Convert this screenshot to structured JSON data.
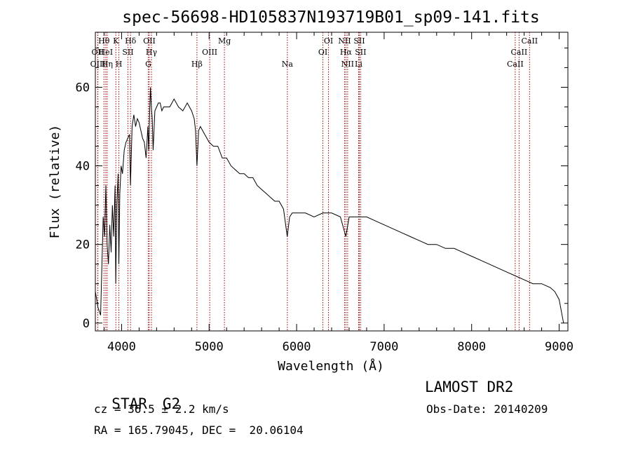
{
  "chart_data": {
    "type": "line",
    "title": "spec-56698-HD105837N193719B01_sp09-141.fits",
    "xlabel": "Wavelength (Å)",
    "ylabel": "Flux (relative)",
    "xlim": [
      3700,
      9100
    ],
    "ylim": [
      -2,
      74
    ],
    "xticks": [
      4000,
      5000,
      6000,
      7000,
      8000,
      9000
    ],
    "yticks": [
      0,
      20,
      40,
      60
    ],
    "grid": false,
    "series": [
      {
        "color": "#000000",
        "x": [
          3700,
          3715,
          3730,
          3745,
          3760,
          3775,
          3790,
          3805,
          3820,
          3835,
          3850,
          3865,
          3880,
          3895,
          3910,
          3925,
          3933,
          3945,
          3960,
          3968,
          3980,
          3995,
          4010,
          4030,
          4050,
          4070,
          4090,
          4101,
          4120,
          4140,
          4160,
          4180,
          4200,
          4220,
          4240,
          4260,
          4280,
          4300,
          4310,
          4320,
          4330,
          4340,
          4350,
          4360,
          4380,
          4400,
          4420,
          4440,
          4460,
          4480,
          4500,
          4550,
          4600,
          4650,
          4700,
          4750,
          4800,
          4830,
          4845,
          4861,
          4880,
          4900,
          4950,
          5000,
          5050,
          5100,
          5150,
          5200,
          5250,
          5300,
          5350,
          5400,
          5450,
          5500,
          5550,
          5600,
          5650,
          5700,
          5750,
          5800,
          5850,
          5893,
          5920,
          5950,
          6000,
          6100,
          6200,
          6300,
          6400,
          6500,
          6563,
          6600,
          6700,
          6800,
          6900,
          7000,
          7100,
          7200,
          7300,
          7400,
          7500,
          7600,
          7700,
          7800,
          7900,
          8000,
          8100,
          8200,
          8300,
          8400,
          8500,
          8600,
          8700,
          8800,
          8900,
          8950,
          9000,
          9050
        ],
        "y": [
          8,
          6,
          4,
          3,
          2,
          15,
          27,
          22,
          35,
          20,
          15,
          25,
          18,
          30,
          22,
          35,
          10,
          30,
          38,
          15,
          33,
          40,
          38,
          44,
          46,
          47,
          48,
          35,
          50,
          53,
          50,
          52,
          51,
          49,
          47,
          46,
          42,
          50,
          44,
          53,
          60,
          55,
          52,
          44,
          54,
          55,
          56,
          56,
          54,
          55,
          55,
          55,
          57,
          55,
          54,
          56,
          54,
          52,
          49,
          40,
          49,
          50,
          48,
          46,
          45,
          45,
          42,
          42,
          40,
          39,
          38,
          38,
          37,
          37,
          35,
          34,
          33,
          32,
          31,
          31,
          29,
          22,
          27,
          28,
          28,
          28,
          27,
          28,
          28,
          27,
          22,
          27,
          27,
          27,
          26,
          25,
          24,
          23,
          22,
          21,
          20,
          20,
          19,
          19,
          18,
          17,
          16,
          15,
          14,
          13,
          12,
          11,
          10,
          10,
          9,
          8,
          6,
          0
        ]
      }
    ],
    "lines": [
      {
        "label": "OII",
        "x": 3727,
        "row": 1
      },
      {
        "label": "OIII",
        "x": 3729,
        "row": 2
      },
      {
        "label": "Hθ",
        "x": 3798,
        "row": 0
      },
      {
        "label": "HeI",
        "x": 3819,
        "row": 1
      },
      {
        "label": "Hη",
        "x": 3835,
        "row": 2
      },
      {
        "label": "K",
        "x": 3934,
        "row": 0
      },
      {
        "label": "SII",
        "x": 4072,
        "row": 1
      },
      {
        "label": "H",
        "x": 3969,
        "row": 2
      },
      {
        "label": "Hδ",
        "x": 4102,
        "row": 0
      },
      {
        "label": "OII",
        "x": 4317,
        "row": 0
      },
      {
        "label": "Hγ",
        "x": 4341,
        "row": 1
      },
      {
        "label": "G",
        "x": 4305,
        "row": 2
      },
      {
        "label": "Hβ",
        "x": 4861,
        "row": 2
      },
      {
        "label": "OIII",
        "x": 5007,
        "row": 1
      },
      {
        "label": "Mg",
        "x": 5175,
        "row": 0
      },
      {
        "label": "Na",
        "x": 5894,
        "row": 2
      },
      {
        "label": "OI",
        "x": 6300,
        "row": 1
      },
      {
        "label": "OI",
        "x": 6364,
        "row": 0
      },
      {
        "label": "NII",
        "x": 6548,
        "row": 0
      },
      {
        "label": "Hα",
        "x": 6563,
        "row": 1
      },
      {
        "label": "NII",
        "x": 6583,
        "row": 2
      },
      {
        "label": "SII",
        "x": 6716,
        "row": 0
      },
      {
        "label": "SII",
        "x": 6731,
        "row": 1
      },
      {
        "label": "Li",
        "x": 6708,
        "row": 2
      },
      {
        "label": "CaII",
        "x": 8498,
        "row": 2
      },
      {
        "label": "CaII",
        "x": 8542,
        "row": 1
      },
      {
        "label": "CaII",
        "x": 8662,
        "row": 0
      }
    ]
  },
  "info": {
    "class_label": "STAR",
    "subclass": "G2",
    "survey": "LAMOST DR2",
    "velocity": "cz = 36.5 ± 2.2 km/s",
    "obs_date": "Obs-Date: 20140209",
    "coords": "RA = 165.79045, DEC =  20.06104"
  }
}
